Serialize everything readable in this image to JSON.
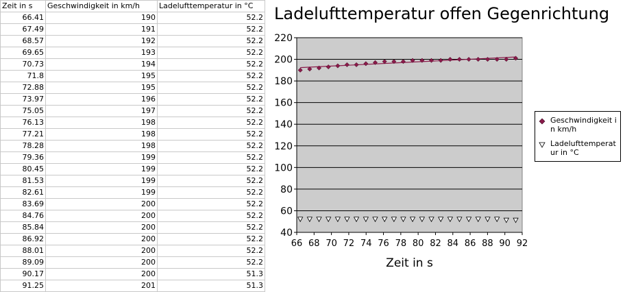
{
  "table": {
    "headers": [
      "Zeit in s",
      "Geschwindigkeit in km/h",
      "Ladelufttemperatur in °C"
    ],
    "rows": [
      [
        "66.41",
        "190",
        "52.2"
      ],
      [
        "67.49",
        "191",
        "52.2"
      ],
      [
        "68.57",
        "192",
        "52.2"
      ],
      [
        "69.65",
        "193",
        "52.2"
      ],
      [
        "70.73",
        "194",
        "52.2"
      ],
      [
        "71.8",
        "195",
        "52.2"
      ],
      [
        "72.88",
        "195",
        "52.2"
      ],
      [
        "73.97",
        "196",
        "52.2"
      ],
      [
        "75.05",
        "197",
        "52.2"
      ],
      [
        "76.13",
        "198",
        "52.2"
      ],
      [
        "77.21",
        "198",
        "52.2"
      ],
      [
        "78.28",
        "198",
        "52.2"
      ],
      [
        "79.36",
        "199",
        "52.2"
      ],
      [
        "80.45",
        "199",
        "52.2"
      ],
      [
        "81.53",
        "199",
        "52.2"
      ],
      [
        "82.61",
        "199",
        "52.2"
      ],
      [
        "83.69",
        "200",
        "52.2"
      ],
      [
        "84.76",
        "200",
        "52.2"
      ],
      [
        "85.84",
        "200",
        "52.2"
      ],
      [
        "86.92",
        "200",
        "52.2"
      ],
      [
        "88.01",
        "200",
        "52.2"
      ],
      [
        "89.09",
        "200",
        "52.2"
      ],
      [
        "90.17",
        "200",
        "51.3"
      ],
      [
        "91.25",
        "201",
        "51.3"
      ]
    ]
  },
  "chart_data": {
    "type": "scatter",
    "title": "Ladelufttemperatur offen Gegenrichtung",
    "xlabel": "Zeit in s",
    "ylabel": "",
    "xlim": [
      66,
      92
    ],
    "ylim": [
      40,
      220
    ],
    "xticks": [
      66,
      68,
      70,
      72,
      74,
      76,
      78,
      80,
      82,
      84,
      86,
      88,
      90,
      92
    ],
    "yticks": [
      40,
      60,
      80,
      100,
      120,
      140,
      160,
      180,
      200,
      220
    ],
    "grid": "horizontal",
    "legend_position": "right",
    "x": [
      66.41,
      67.49,
      68.57,
      69.65,
      70.73,
      71.8,
      72.88,
      73.97,
      75.05,
      76.13,
      77.21,
      78.28,
      79.36,
      80.45,
      81.53,
      82.61,
      83.69,
      84.76,
      85.84,
      86.92,
      88.01,
      89.09,
      90.17,
      91.25
    ],
    "series": [
      {
        "name": "Geschwindigkeit in km/h",
        "marker": "diamond",
        "color": "#8b1a4a",
        "values": [
          190,
          191,
          192,
          193,
          194,
          195,
          195,
          196,
          197,
          198,
          198,
          198,
          199,
          199,
          199,
          199,
          200,
          200,
          200,
          200,
          200,
          200,
          200,
          201
        ]
      },
      {
        "name": "Ladelufttemperatur in °C",
        "marker": "triangle-down",
        "color": "#ffffff",
        "values": [
          52.2,
          52.2,
          52.2,
          52.2,
          52.2,
          52.2,
          52.2,
          52.2,
          52.2,
          52.2,
          52.2,
          52.2,
          52.2,
          52.2,
          52.2,
          52.2,
          52.2,
          52.2,
          52.2,
          52.2,
          52.2,
          52.2,
          51.3,
          51.3
        ]
      }
    ],
    "trendline": {
      "series": 0,
      "color": "#8b1a4a"
    },
    "plot_background": "#cccccc"
  }
}
